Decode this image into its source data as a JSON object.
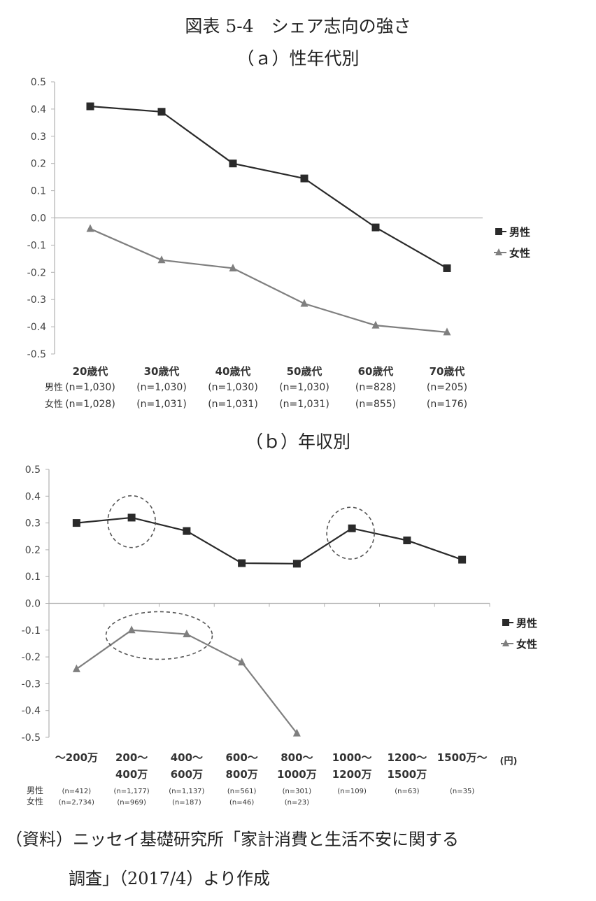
{
  "figure_title": "図表 5-4　シェア志向の強さ",
  "legend": {
    "male": "男性",
    "female": "女性"
  },
  "source": {
    "line1": "（資料）ニッセイ基礎研究所「家計消費と生活不安に関する",
    "line2": "調査」（2017/4）より作成"
  },
  "colors": {
    "male": "#2a2a2a",
    "female": "#7f7f7f",
    "axis": "#b0b0b0",
    "circle": "#555555"
  },
  "chart_data": [
    {
      "type": "line",
      "title": "（ａ）性年代別",
      "ylim": [
        -0.5,
        0.5
      ],
      "yticks": [
        "0.5",
        "0.4",
        "0.3",
        "0.2",
        "0.1",
        "0.0",
        "-0.1",
        "-0.2",
        "-0.3",
        "-0.4",
        "-0.5"
      ],
      "categories": [
        "20歳代",
        "30歳代",
        "40歳代",
        "50歳代",
        "60歳代",
        "70歳代"
      ],
      "n_male": [
        "(n=1,030)",
        "(n=1,030)",
        "(n=1,030)",
        "(n=1,030)",
        "(n=828)",
        "(n=205)"
      ],
      "n_female": [
        "(n=1,028)",
        "(n=1,031)",
        "(n=1,031)",
        "(n=1,031)",
        "(n=855)",
        "(n=176)"
      ],
      "legend_position": "right",
      "series": [
        {
          "name": "男性",
          "marker": "square",
          "values": [
            0.41,
            0.39,
            0.2,
            0.145,
            -0.035,
            -0.185
          ]
        },
        {
          "name": "女性",
          "marker": "triangle",
          "values": [
            -0.04,
            -0.155,
            -0.185,
            -0.315,
            -0.395,
            -0.42
          ]
        }
      ]
    },
    {
      "type": "line",
      "title": "（ｂ）年収別",
      "ylim": [
        -0.5,
        0.5
      ],
      "yticks": [
        "0.5",
        "0.4",
        "0.3",
        "0.2",
        "0.1",
        "0.0",
        "-0.1",
        "-0.2",
        "-0.3",
        "-0.4",
        "-0.5"
      ],
      "categories": [
        [
          "～200万"
        ],
        [
          "200～",
          "400万"
        ],
        [
          "400～",
          "600万"
        ],
        [
          "600～",
          "800万"
        ],
        [
          "800～",
          "1000万"
        ],
        [
          "1000～",
          "1200万"
        ],
        [
          "1200～",
          "1500万"
        ],
        [
          "1500万～"
        ]
      ],
      "unit": "(円)",
      "n_male": [
        "(n=412)",
        "(n=1,177)",
        "(n=1,137)",
        "(n=561)",
        "(n=301)",
        "(n=109)",
        "(n=63)",
        "(n=35)"
      ],
      "n_female": [
        "(n=2,734)",
        "(n=969)",
        "(n=187)",
        "(n=46)",
        "(n=23)",
        "",
        "",
        ""
      ],
      "legend_position": "right",
      "series": [
        {
          "name": "男性",
          "marker": "square",
          "values": [
            0.3,
            0.32,
            0.27,
            0.15,
            0.148,
            0.28,
            0.235,
            0.163
          ]
        },
        {
          "name": "女性",
          "marker": "triangle",
          "values": [
            -0.245,
            -0.1,
            -0.115,
            -0.22,
            -0.485,
            null,
            null,
            null
          ]
        }
      ],
      "annotations": [
        "dashed circle around 男性 200～400万",
        "dashed circle around 男性 1000～1200万",
        "dashed ellipse around 女性 200～600万"
      ]
    }
  ]
}
